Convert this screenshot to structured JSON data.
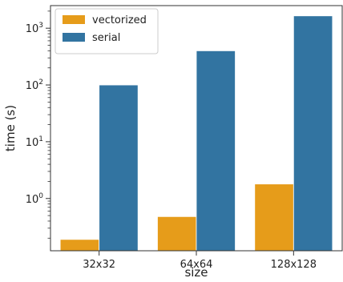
{
  "chart_data": {
    "type": "bar",
    "xlabel": "size",
    "ylabel": "time (s)",
    "yscale": "log",
    "ylim": [
      0.12,
      2500
    ],
    "categories": [
      "32x32",
      "64x64",
      "128x128"
    ],
    "series": [
      {
        "name": "vectorized",
        "color": "#e69c1a",
        "values": [
          0.19,
          0.48,
          1.8
        ]
      },
      {
        "name": "serial",
        "color": "#3274a1",
        "values": [
          100,
          400,
          1650
        ]
      }
    ],
    "y_ticks": [
      {
        "value": 1,
        "base": "10",
        "exp": "0"
      },
      {
        "value": 10,
        "base": "10",
        "exp": "1"
      },
      {
        "value": 100,
        "base": "10",
        "exp": "2"
      },
      {
        "value": 1000,
        "base": "10",
        "exp": "3"
      }
    ],
    "legend": {
      "placement": "top-left"
    },
    "grid": false
  }
}
